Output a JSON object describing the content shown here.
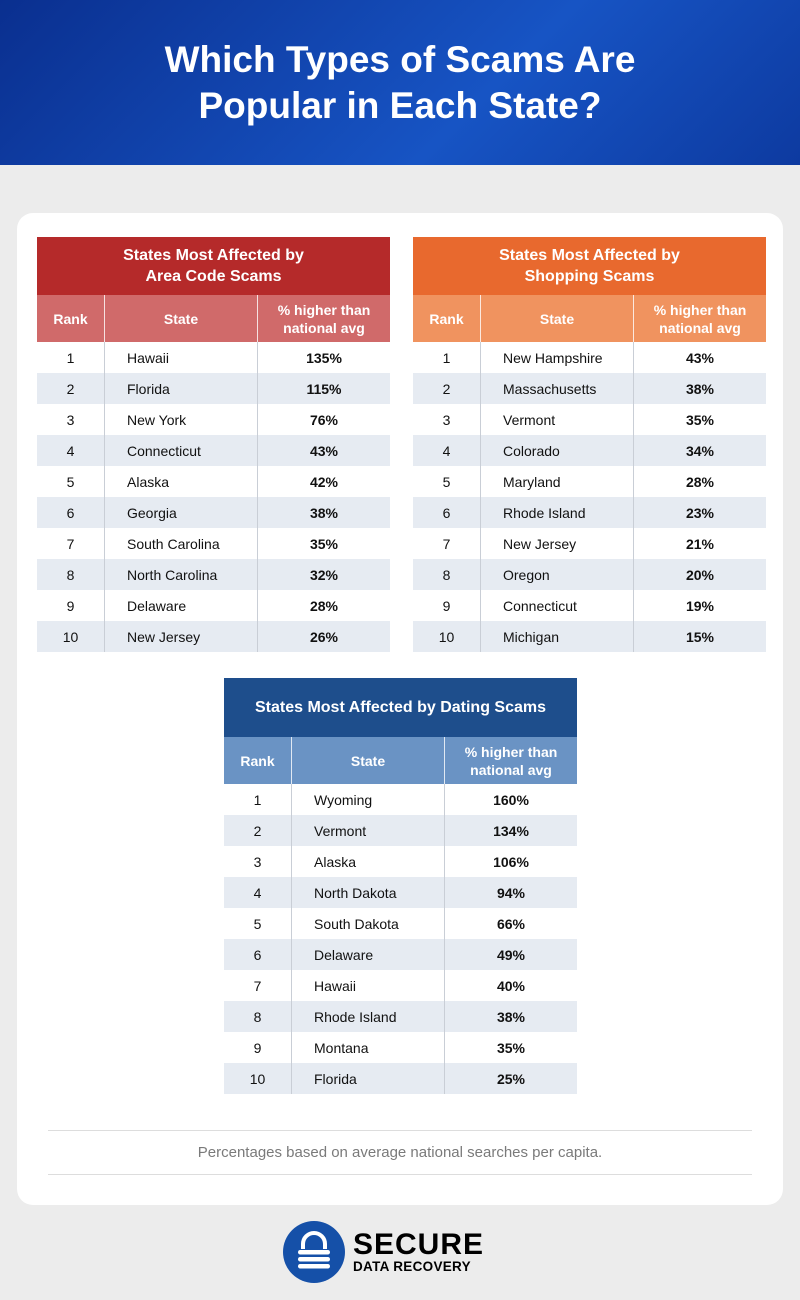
{
  "header": {
    "title": "Which Types of Scams Are Popular in Each State?"
  },
  "columns": {
    "rank": "Rank",
    "state": "State",
    "pct": "% higher than national avg"
  },
  "tables": [
    {
      "title": "States Most Affected by Area Code Scams",
      "color": "#b52a2a",
      "sub_color": "#d06a6a",
      "rows": [
        [
          "1",
          "Hawaii",
          "135%"
        ],
        [
          "2",
          "Florida",
          "115%"
        ],
        [
          "3",
          "New York",
          "76%"
        ],
        [
          "4",
          "Connecticut",
          "43%"
        ],
        [
          "5",
          "Alaska",
          "42%"
        ],
        [
          "6",
          "Georgia",
          "38%"
        ],
        [
          "7",
          "South Carolina",
          "35%"
        ],
        [
          "8",
          "North Carolina",
          "32%"
        ],
        [
          "9",
          "Delaware",
          "28%"
        ],
        [
          "10",
          "New Jersey",
          "26%"
        ]
      ]
    },
    {
      "title": "States Most Affected by Shopping Scams",
      "color": "#e8692e",
      "sub_color": "#f0935f",
      "rows": [
        [
          "1",
          "New Hampshire",
          "43%"
        ],
        [
          "2",
          "Massachusetts",
          "38%"
        ],
        [
          "3",
          "Vermont",
          "35%"
        ],
        [
          "4",
          "Colorado",
          "34%"
        ],
        [
          "5",
          "Maryland",
          "28%"
        ],
        [
          "6",
          "Rhode Island",
          "23%"
        ],
        [
          "7",
          "New Jersey",
          "21%"
        ],
        [
          "8",
          "Oregon",
          "20%"
        ],
        [
          "9",
          "Connecticut",
          "19%"
        ],
        [
          "10",
          "Michigan",
          "15%"
        ]
      ]
    },
    {
      "title": "States Most Affected by Dating Scams",
      "color": "#1e4e8c",
      "sub_color": "#6a93c4",
      "rows": [
        [
          "1",
          "Wyoming",
          "160%"
        ],
        [
          "2",
          "Vermont",
          "134%"
        ],
        [
          "3",
          "Alaska",
          "106%"
        ],
        [
          "4",
          "North Dakota",
          "94%"
        ],
        [
          "5",
          "South Dakota",
          "66%"
        ],
        [
          "6",
          "Delaware",
          "49%"
        ],
        [
          "7",
          "Hawaii",
          "40%"
        ],
        [
          "8",
          "Rhode Island",
          "38%"
        ],
        [
          "9",
          "Montana",
          "35%"
        ],
        [
          "10",
          "Florida",
          "25%"
        ]
      ]
    }
  ],
  "footnote": "Percentages based on average national searches per capita.",
  "logo": {
    "line1": "SECURE",
    "line2": "DATA RECOVERY",
    "icon": "padlock-icon",
    "color": "#1550a8"
  }
}
